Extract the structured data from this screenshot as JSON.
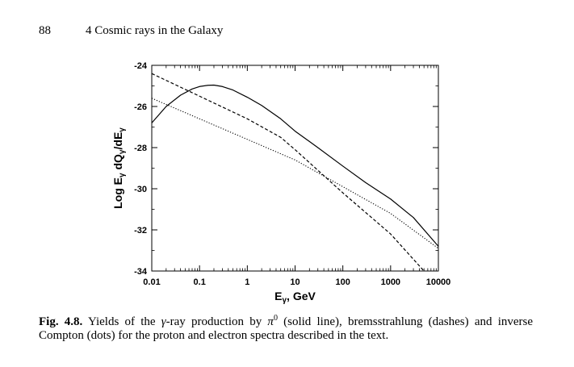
{
  "header": {
    "page_number": "88",
    "chapter_title": "4 Cosmic rays in the Galaxy"
  },
  "figure": {
    "caption_label": "Fig. 4.8.",
    "caption_text": "Yields of the γ-ray production by π0 (solid line), bremsstrahlung (dashes) and inverse Compton (dots) for the proton and electron spectra described in the text.",
    "caption_runs": [
      "Yields of the ",
      "γ",
      "-ray production by ",
      "π",
      "0",
      " (solid line), bremsstrahlung (dashes) and inverse Compton (dots) for the proton and electron spectra described in the text."
    ]
  },
  "chart_data": {
    "type": "line",
    "title": "",
    "xlabel": "Eγ, GeV",
    "xlabel_parts": [
      "E",
      "γ",
      ", GeV"
    ],
    "ylabel": "Log Eγ dQγ/dEγ",
    "ylabel_parts": [
      "Log E",
      "γ",
      " dQ",
      "γ",
      "/dE",
      "γ"
    ],
    "x_scale": "log",
    "xlim": [
      0.01,
      10000
    ],
    "ylim": [
      -34,
      -24
    ],
    "x_ticks": [
      0.01,
      0.1,
      1,
      10,
      100,
      1000,
      10000
    ],
    "x_tick_labels": [
      "0.01",
      "0.1",
      "1",
      "10",
      "100",
      "1000",
      "10000"
    ],
    "y_ticks": [
      -24,
      -26,
      -28,
      -30,
      -32,
      -34
    ],
    "y_tick_labels": [
      "-24",
      "-26",
      "-28",
      "-30",
      "-32",
      "-34"
    ],
    "grid": false,
    "series": [
      {
        "style": "solid",
        "x": [
          0.01,
          0.02,
          0.04,
          0.07,
          0.1,
          0.15,
          0.2,
          0.3,
          0.5,
          1,
          2,
          5,
          10,
          30,
          100,
          300,
          1000,
          3000,
          10000
        ],
        "y": [
          -26.8,
          -26.0,
          -25.45,
          -25.15,
          -25.03,
          -24.97,
          -24.96,
          -25.03,
          -25.2,
          -25.55,
          -25.95,
          -26.6,
          -27.2,
          -28.0,
          -28.9,
          -29.7,
          -30.5,
          -31.4,
          -32.8
        ]
      },
      {
        "style": "dashed",
        "x": [
          0.01,
          0.1,
          1,
          5,
          10,
          100,
          1000,
          5000
        ],
        "y": [
          -24.4,
          -25.5,
          -26.6,
          -27.5,
          -28.1,
          -30.2,
          -32.2,
          -34.0
        ]
      },
      {
        "style": "dotted",
        "x": [
          0.01,
          0.1,
          1,
          10,
          100,
          1000,
          10000
        ],
        "y": [
          -25.6,
          -26.6,
          -27.6,
          -28.6,
          -29.9,
          -31.2,
          -32.9
        ]
      }
    ]
  }
}
